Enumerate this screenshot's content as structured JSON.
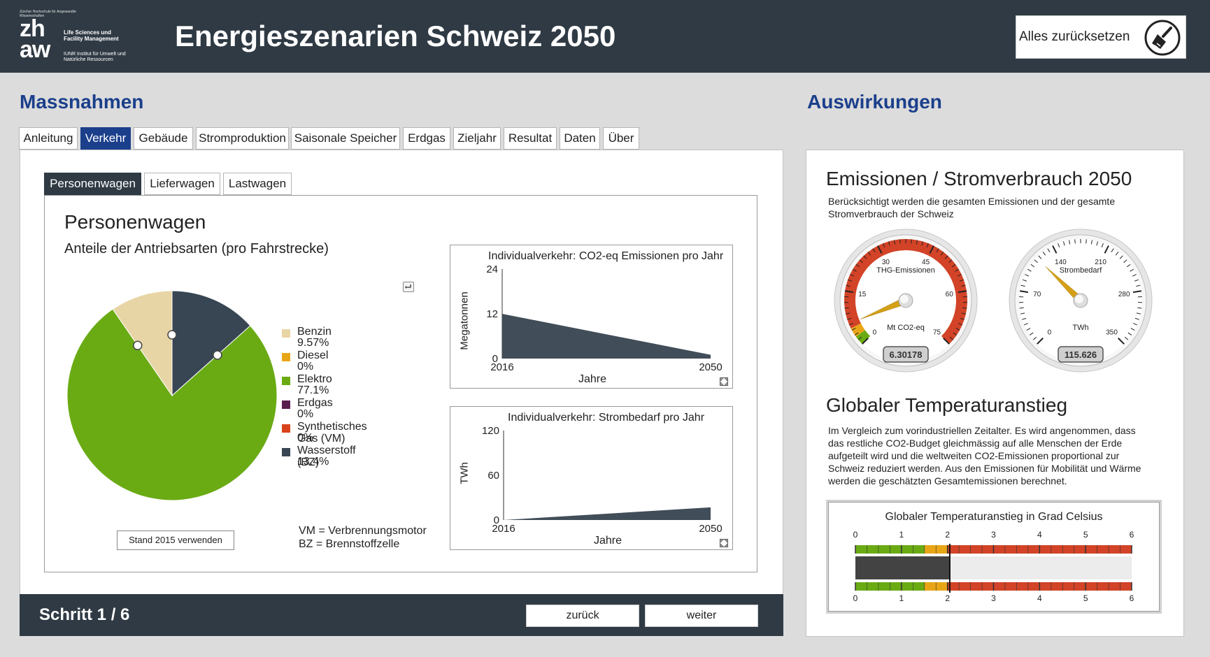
{
  "header": {
    "title": "Energieszenarien Schweiz 2050",
    "reset_label": "Alles zurücksetzen",
    "logo": {
      "top_small": "Zürcher Hochschule für Angewandte Wissenschaften",
      "mark_line1": "zh",
      "mark_line2": "aw",
      "dept": "Life Sciences und Facility Management",
      "institute": "IUNR Institut für Umwelt und Natürliche Ressourcen"
    }
  },
  "left": {
    "title": "Massnahmen",
    "tabs": [
      "Anleitung",
      "Verkehr",
      "Gebäude",
      "Stromproduktion",
      "Saisonale Speicher",
      "Erdgas",
      "Zieljahr",
      "Resultat",
      "Daten",
      "Über"
    ],
    "active_tab": "Verkehr",
    "subtabs": [
      "Personenwagen",
      "Lieferwagen",
      "Lastwagen"
    ],
    "active_subtab": "Personenwagen",
    "heading": "Personenwagen",
    "subheading": "Anteile der Antriebsarten (pro Fahrstrecke)",
    "stand_button": "Stand 2015 verwenden",
    "notes": [
      "VM = Verbrennungsmotor",
      "BZ = Brennstoffzelle"
    ],
    "footer": {
      "step": "Schritt 1 / 6",
      "back": "zurück",
      "next": "weiter"
    }
  },
  "pie": {
    "slices": [
      {
        "name": "Benzin",
        "label": "9.57%",
        "value": 9.57,
        "color": "#e8d5a5"
      },
      {
        "name": "Diesel",
        "label": "0%",
        "value": 0,
        "color": "#e8a617"
      },
      {
        "name": "Elektro",
        "label": "77.1%",
        "value": 77.1,
        "color": "#6aab14"
      },
      {
        "name": "Erdgas",
        "label": "0%",
        "value": 0,
        "color": "#5a1e4f"
      },
      {
        "name": "Synthetisches Gas (VM)",
        "label": "0%",
        "value": 0,
        "color": "#d9431b"
      },
      {
        "name": "Wasserstoff (BZ)",
        "label": "13.4%",
        "value": 13.4,
        "color": "#384653"
      }
    ]
  },
  "chart_data": [
    {
      "type": "area",
      "title": "Individualverkehr: CO2-eq Emissionen pro Jahr",
      "xlabel": "Jahre",
      "ylabel": "Megatonnen",
      "x": [
        2016,
        2050
      ],
      "y": [
        12,
        1
      ],
      "xlim": [
        2016,
        2050
      ],
      "ylim": [
        0,
        24
      ],
      "yticks": [
        0,
        12,
        24
      ],
      "color": "#414d58"
    },
    {
      "type": "area",
      "title": "Individualverkehr: Strombedarf pro Jahr",
      "xlabel": "Jahre",
      "ylabel": "TWh",
      "x": [
        2016,
        2050
      ],
      "y": [
        0,
        17
      ],
      "xlim": [
        2016,
        2050
      ],
      "ylim": [
        0,
        120
      ],
      "yticks": [
        0,
        60,
        120
      ],
      "color": "#414d58"
    }
  ],
  "right": {
    "title": "Auswirkungen",
    "emissions_heading": "Emissionen / Stromverbrauch 2050",
    "emissions_desc": [
      "Berücksichtigt werden die gesamten Emissionen und der gesamte",
      "Stromverbrauch der Schweiz"
    ],
    "gauges": [
      {
        "title": "THG-Emissionen",
        "unit": "Mt CO2-eq",
        "display": "6.30178",
        "value": 6.30178,
        "min": 0,
        "max": 75,
        "ticks": [
          "0",
          "15",
          "30",
          "45",
          "60",
          "75"
        ]
      },
      {
        "title": "Strombedarf",
        "unit": "TWh",
        "display": "115.626",
        "value": 115.626,
        "min": 0,
        "max": 350,
        "ticks": [
          "0",
          "70",
          "140",
          "210",
          "280",
          "350"
        ]
      }
    ],
    "temp_heading": "Globaler Temperaturanstieg",
    "temp_desc": [
      "Im Vergleich zum vorindustriellen Zeitalter. Es wird angenommen, dass",
      "das restliche CO2-Budget gleichmässig auf alle Menschen der Erde",
      "aufgeteilt wird und die weltweiten CO2-Emissionen proportional zur",
      "Schweiz reduziert werden. Aus den Emissionen für Mobilität und Wärme",
      "werden die geschätzten Gesamtemissionen berechnet."
    ],
    "temp_chart": {
      "title": "Globaler Temperaturanstieg in Grad Celsius",
      "ticks": [
        "0",
        "1",
        "2",
        "3",
        "4",
        "5",
        "6"
      ],
      "value": 2.05,
      "max": 6
    }
  }
}
